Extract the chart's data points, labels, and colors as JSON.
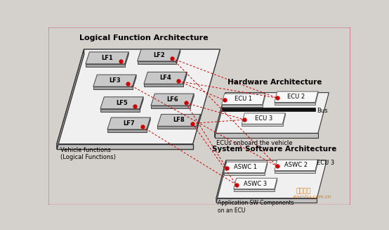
{
  "bg_color": "#d4d0cb",
  "border_color": "#c8647a",
  "title": "Logical Function Architecture",
  "hw_title": "Hardware Architecture",
  "sw_title": "System Software Architecture",
  "vehicle_label": "Vehicle functions\n(Logical Functions)",
  "ecu_board_label": "ECUs onboard the vehicle",
  "app_sw_label": "Application SW Components\non an ECU",
  "bus_label": "Bus",
  "ecu3_sw_label": "ECU 3",
  "dot_color": "#cc0000",
  "dashed_color": "#cc0000",
  "lf_face_color": "#c8c8c8",
  "lf_side_color": "#888888",
  "lf_bot_color": "#a0a0a0",
  "platform_lf_face": "#f0f0f0",
  "platform_lf_edge": "#333333",
  "platform_hw_face": "#f0f0f0",
  "platform_hw_edge": "#333333",
  "platform_sw_face": "#f0f0f0",
  "platform_sw_edge": "#333333",
  "ecu_face": "#f8f8f8",
  "ecu_side": "#aaaaaa",
  "ecu_bot": "#c0c0c0",
  "bus_color": "#111111",
  "watermark_color": "#cc6600"
}
